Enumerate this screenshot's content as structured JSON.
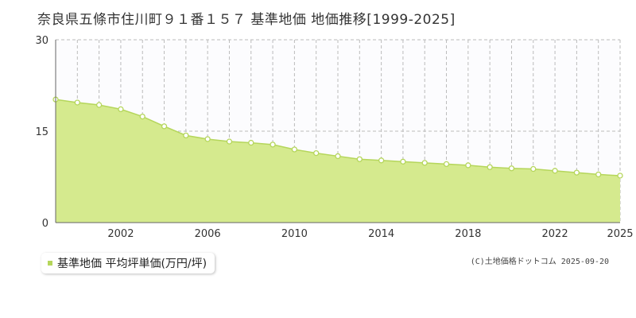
{
  "title": "奈良県五條市住川町９１番１５７ 基準地価 地価推移[1999-2025]",
  "legend": {
    "label": "基準地価 平均坪単価(万円/坪)"
  },
  "copyright": "(C)土地価格ドットコム 2025-09-20",
  "colors": {
    "area_fill": "#d5ea8e",
    "line": "#b5d65b",
    "point_fill": "#ffffff",
    "point_stroke": "#b5d65b",
    "legend_marker": "#b5d65b",
    "plot_background": "#fcfcfe",
    "grid": "#bbbbbb"
  },
  "chart_data": {
    "type": "area",
    "title": "",
    "xlabel": "",
    "ylabel": "",
    "x": [
      1999,
      2000,
      2001,
      2002,
      2003,
      2004,
      2005,
      2006,
      2007,
      2008,
      2009,
      2010,
      2011,
      2012,
      2013,
      2014,
      2015,
      2016,
      2017,
      2018,
      2019,
      2020,
      2021,
      2022,
      2023,
      2024,
      2025
    ],
    "series": [
      {
        "name": "基準地価 平均坪単価(万円/坪)",
        "values": [
          20.2,
          19.7,
          19.3,
          18.6,
          17.4,
          15.8,
          14.3,
          13.7,
          13.3,
          13.1,
          12.8,
          12.0,
          11.4,
          10.9,
          10.4,
          10.2,
          10.0,
          9.8,
          9.6,
          9.4,
          9.1,
          8.9,
          8.8,
          8.5,
          8.2,
          7.9,
          7.7
        ]
      }
    ],
    "xlim": [
      1999,
      2025
    ],
    "ylim": [
      0,
      30
    ],
    "y_ticks": [
      "0",
      "15",
      "30"
    ],
    "x_ticks": [
      "2002",
      "2006",
      "2010",
      "2014",
      "2018",
      "2022",
      "2025"
    ],
    "grid": true,
    "legend_position": "bottom-left"
  }
}
